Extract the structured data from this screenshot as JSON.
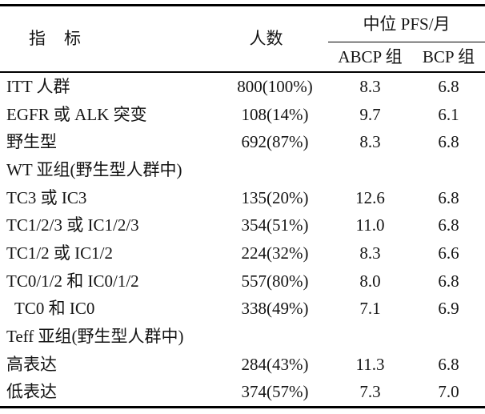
{
  "table": {
    "headers": {
      "indicator": "指　标",
      "n": "人数",
      "pfs_group": "中位 PFS/月",
      "abcp": "ABCP 组",
      "bcp": "BCP 组"
    },
    "rows": [
      {
        "label": "ITT 人群",
        "n": "800(100%)",
        "abcp": "8.3",
        "bcp": "6.8",
        "section": false,
        "indent": false
      },
      {
        "label": "EGFR 或 ALK 突变",
        "n": "108(14%)",
        "abcp": "9.7",
        "bcp": "6.1",
        "section": false,
        "indent": false
      },
      {
        "label": "野生型",
        "n": "692(87%)",
        "abcp": "8.3",
        "bcp": "6.8",
        "section": false,
        "indent": false
      },
      {
        "label": "WT 亚组(野生型人群中)",
        "n": "",
        "abcp": "",
        "bcp": "",
        "section": true,
        "indent": false
      },
      {
        "label": "TC3 或 IC3",
        "n": "135(20%)",
        "abcp": "12.6",
        "bcp": "6.8",
        "section": false,
        "indent": false
      },
      {
        "label": "TC1/2/3 或 IC1/2/3",
        "n": "354(51%)",
        "abcp": "11.0",
        "bcp": "6.8",
        "section": false,
        "indent": false
      },
      {
        "label": "TC1/2 或 IC1/2",
        "n": "224(32%)",
        "abcp": "8.3",
        "bcp": "6.6",
        "section": false,
        "indent": false
      },
      {
        "label": "TC0/1/2 和 IC0/1/2",
        "n": "557(80%)",
        "abcp": "8.0",
        "bcp": "6.8",
        "section": false,
        "indent": false
      },
      {
        "label": "TC0 和 IC0",
        "n": "338(49%)",
        "abcp": "7.1",
        "bcp": "6.9",
        "section": false,
        "indent": true
      },
      {
        "label": "Teff 亚组(野生型人群中)",
        "n": "",
        "abcp": "",
        "bcp": "",
        "section": true,
        "indent": false
      },
      {
        "label": "高表达",
        "n": "284(43%)",
        "abcp": "11.3",
        "bcp": "6.8",
        "section": false,
        "indent": false
      },
      {
        "label": "低表达",
        "n": "374(57%)",
        "abcp": "7.3",
        "bcp": "7.0",
        "section": false,
        "indent": false
      }
    ],
    "colors": {
      "rule": "#000000",
      "text": "#141414",
      "background": "#ffffff"
    }
  }
}
